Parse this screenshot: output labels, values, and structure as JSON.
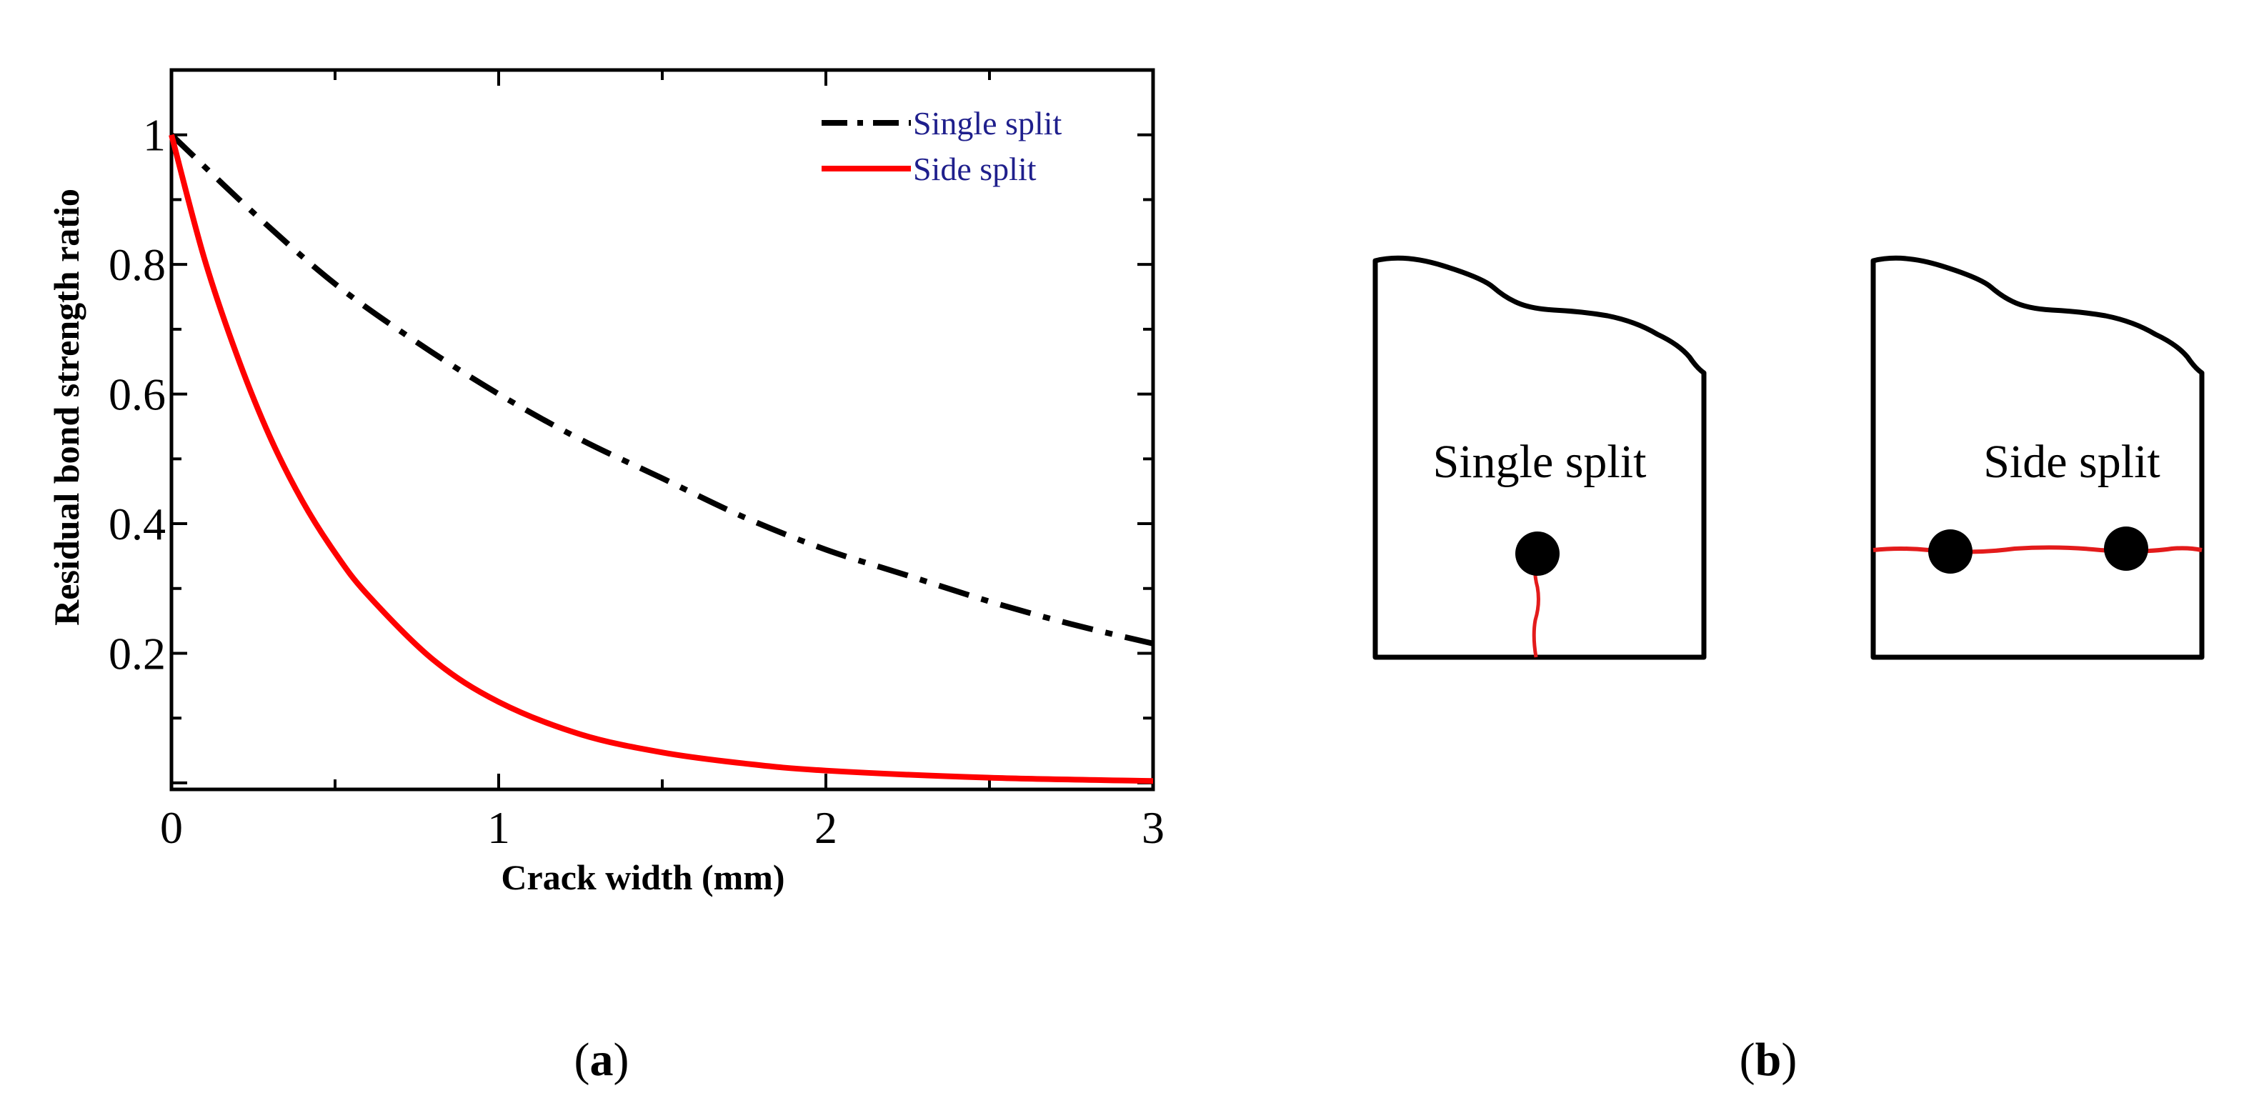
{
  "chart_data": {
    "type": "line",
    "xlabel": "Crack width (mm)",
    "ylabel": "Residual bond strength ratio",
    "xlim": [
      0,
      3
    ],
    "ylim": [
      -0.01,
      1.1
    ],
    "x_ticks": [
      "0",
      "1",
      "2",
      "3"
    ],
    "y_ticks": [
      "0.2",
      "0.4",
      "0.6",
      "0.8",
      "1"
    ],
    "y_tick_values": [
      0.2,
      0.4,
      0.6,
      0.8,
      1
    ],
    "legend_position": "top-right",
    "series": [
      {
        "name": "Single split",
        "style": "dash-dot",
        "color": "#000000",
        "x": [
          0,
          0.25,
          0.5,
          0.75,
          1,
          1.25,
          1.5,
          1.75,
          2,
          2.25,
          2.5,
          2.75,
          3
        ],
        "y": [
          1.0,
          0.88,
          0.77,
          0.68,
          0.6,
          0.53,
          0.47,
          0.41,
          0.36,
          0.32,
          0.28,
          0.245,
          0.215
        ]
      },
      {
        "name": "Side split",
        "style": "solid",
        "color": "#ff0000",
        "x": [
          0,
          0.1,
          0.2,
          0.3,
          0.4,
          0.5,
          0.6,
          0.8,
          1,
          1.25,
          1.5,
          1.75,
          2,
          2.5,
          3
        ],
        "y": [
          1.0,
          0.81,
          0.66,
          0.535,
          0.435,
          0.355,
          0.29,
          0.19,
          0.125,
          0.075,
          0.047,
          0.03,
          0.019,
          0.008,
          0.003
        ]
      }
    ]
  },
  "diagram": {
    "labels": [
      "Single split",
      "Side split"
    ],
    "crack_color": "#e31b1b"
  },
  "captions": {
    "a": "a",
    "b": "b"
  }
}
